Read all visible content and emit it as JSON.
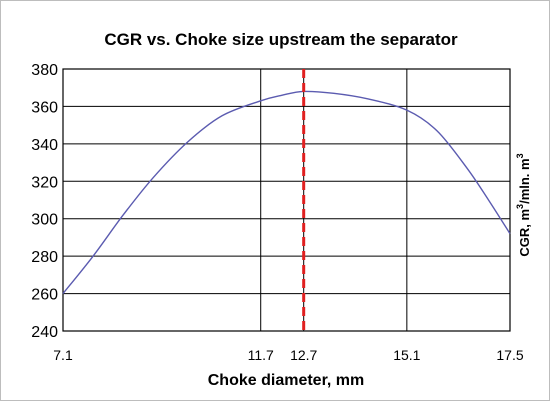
{
  "chart_data": {
    "type": "line",
    "title": "CGR vs. Choke size upstream the separator",
    "xlabel": "Choke diameter, mm",
    "ylabel_base": "CGR, m",
    "ylabel_sup1": "3",
    "ylabel_mid": "/mln. m",
    "ylabel_sup2": "3",
    "x_ticks": [
      7.1,
      11.7,
      12.7,
      15.1,
      17.5
    ],
    "x_tick_labels": [
      "7.1",
      "11.7",
      "12.7",
      "15.1",
      "17.5"
    ],
    "y_ticks": [
      240,
      260,
      280,
      300,
      320,
      340,
      360,
      380
    ],
    "y_tick_labels": [
      "240",
      "260",
      "280",
      "300",
      "320",
      "340",
      "360",
      "380"
    ],
    "xlim": [
      7.1,
      17.5
    ],
    "ylim": [
      240,
      380
    ],
    "grid": true,
    "series": [
      {
        "color": "#5b5bb0",
        "x": [
          7.1,
          7.8,
          8.5,
          9.2,
          10.0,
          10.8,
          11.7,
          12.2,
          12.7,
          13.4,
          14.2,
          15.1,
          15.8,
          16.5,
          17.0,
          17.5
        ],
        "y": [
          260,
          280,
          302,
          322,
          341,
          355,
          363,
          366,
          368,
          367,
          364,
          358,
          347,
          327,
          310,
          292
        ]
      }
    ],
    "reference_line": {
      "x": 12.7,
      "color": "#e02020",
      "style": "dashed"
    }
  }
}
